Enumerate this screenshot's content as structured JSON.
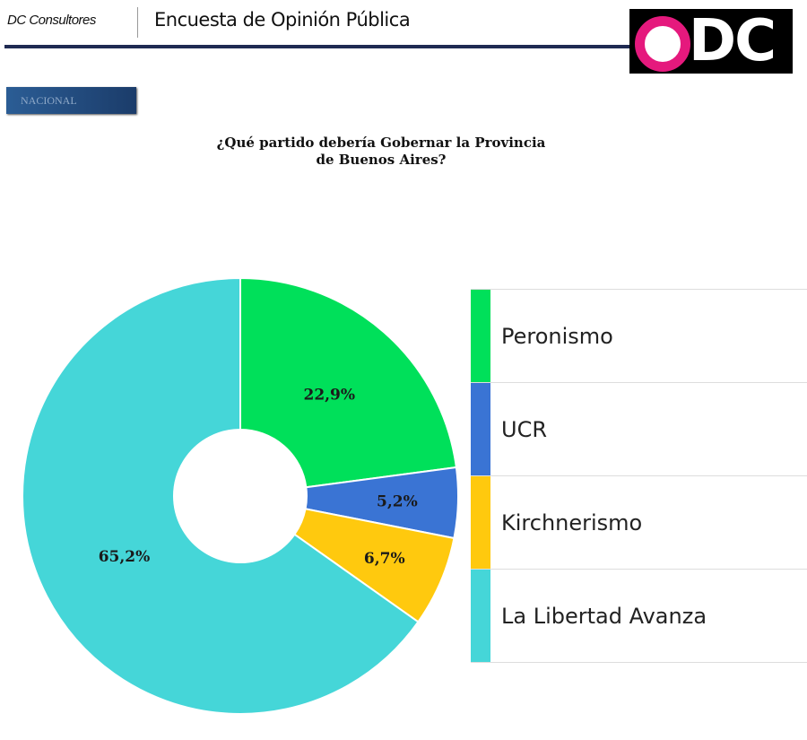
{
  "header": {
    "brand": "DC Consultores",
    "survey_title": "Encuesta de Opinión Pública",
    "logo_text": "ODC"
  },
  "section_badge": "NACIONAL",
  "chart_data": {
    "type": "pie",
    "variant": "donut",
    "title_lines": [
      "¿Qué partido debería Gobernar la Provincia",
      "de Buenos Aires?"
    ],
    "categories": [
      "Peronismo",
      "UCR",
      "Kirchnerismo",
      "La Libertad Avanza"
    ],
    "values": [
      22.9,
      5.2,
      6.7,
      65.2
    ],
    "data_labels": [
      "22,9%",
      "5,2%",
      "6,7%",
      "65,2%"
    ],
    "colors": [
      "#00e05a",
      "#3a74d4",
      "#ffc90e",
      "#45d6d8"
    ],
    "legend_position": "right",
    "start_angle": "top, clockwise"
  }
}
